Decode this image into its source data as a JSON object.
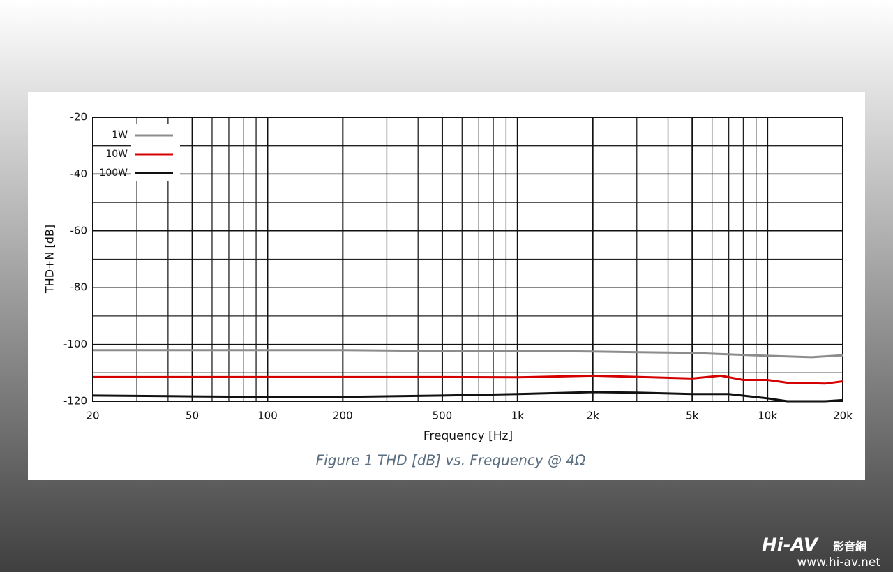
{
  "chart_data": {
    "type": "line",
    "caption": "Figure 1 THD [dB] vs. Frequency @ 4Ω",
    "x_label": "Frequency [Hz]",
    "y_label": "THD+N [dB]",
    "x_scale": "log",
    "xlim": [
      20,
      20000
    ],
    "ylim": [
      -120,
      -20
    ],
    "xticks": [
      20,
      50,
      100,
      200,
      500,
      {
        "value": 1000,
        "label": "1k"
      },
      {
        "value": 2000,
        "label": "2k"
      },
      {
        "value": 5000,
        "label": "5k"
      },
      {
        "value": 10000,
        "label": "10k"
      },
      {
        "value": 20000,
        "label": "20k"
      }
    ],
    "xgrid_minor": [
      30,
      40,
      60,
      70,
      80,
      90,
      300,
      400,
      600,
      700,
      800,
      900,
      3000,
      4000,
      6000,
      7000,
      8000,
      9000
    ],
    "yticks": [
      -20,
      -40,
      -60,
      -80,
      -100,
      -120
    ],
    "ygrid_minor": [
      -30,
      -50,
      -70,
      -90,
      -110
    ],
    "grid": true,
    "legend": "upper left",
    "series": [
      {
        "name": "1W",
        "color": "#8c8c8c",
        "x": [
          20,
          30,
          50,
          100,
          200,
          500,
          1000,
          2000,
          5000,
          10000,
          15000,
          20000
        ],
        "values": [
          -102,
          -102,
          -102,
          -102,
          -102,
          -102.3,
          -102.2,
          -102.5,
          -103,
          -104,
          -104.5,
          -103.8
        ]
      },
      {
        "name": "10W",
        "color": "#d40000",
        "x": [
          20,
          50,
          100,
          200,
          500,
          1000,
          2000,
          5000,
          6500,
          8000,
          10000,
          12000,
          17000,
          20000
        ],
        "values": [
          -111.5,
          -111.5,
          -111.5,
          -111.5,
          -111.5,
          -111.6,
          -111,
          -112,
          -111,
          -112.5,
          -112.5,
          -113.5,
          -113.8,
          -113
        ]
      },
      {
        "name": "100W",
        "color": "#111111",
        "x": [
          20,
          50,
          100,
          200,
          500,
          1000,
          2000,
          3000,
          5000,
          7000,
          10000,
          12000,
          17000,
          20000
        ],
        "values": [
          -118,
          -118.3,
          -118.5,
          -118.5,
          -118,
          -117.5,
          -116.8,
          -117,
          -117.5,
          -117.5,
          -119,
          -120,
          -120,
          -119.6
        ]
      }
    ]
  },
  "watermark": {
    "brand": "Hi-AV",
    "brand_cn": "影音網",
    "url": "www.hi-av.net"
  }
}
